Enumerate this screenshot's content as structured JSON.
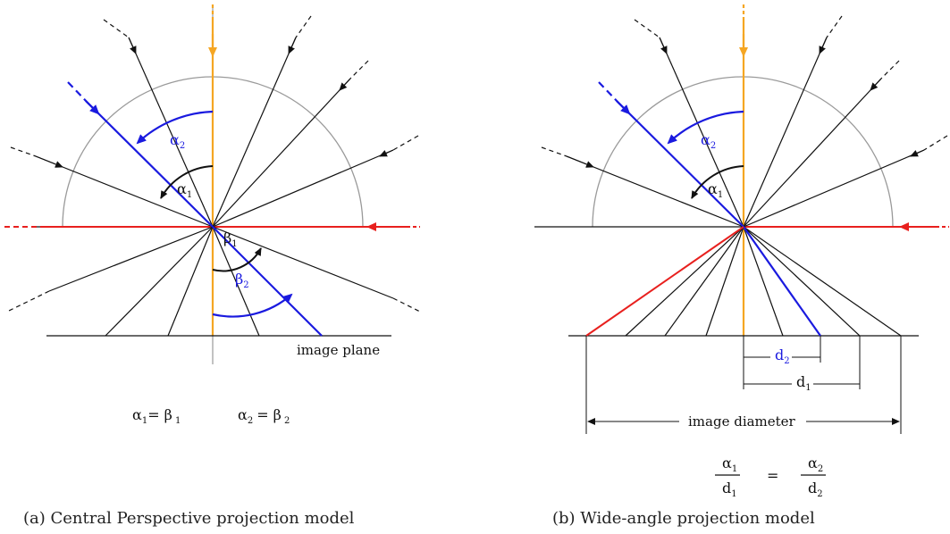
{
  "left_panel": {
    "caption": "(a) Central Perspective projection model",
    "image_plane_label": "image plane",
    "alpha1": {
      "sym": "α",
      "sub": "1"
    },
    "alpha2": {
      "sym": "α",
      "sub": "2"
    },
    "beta1": {
      "sym": "β",
      "sub": "1"
    },
    "beta2": {
      "sym": "β",
      "sub": "2"
    },
    "equation1": {
      "lhs": "α",
      "lhs_sub": "1",
      "eq": "= β",
      "rhs_sub": "1"
    },
    "equation2": {
      "lhs": "α",
      "lhs_sub": "2",
      "eq": "= β",
      "rhs_sub": "2"
    }
  },
  "right_panel": {
    "caption": "(b) Wide-angle projection model",
    "image_diameter_label": "image diameter",
    "alpha1": {
      "sym": "α",
      "sub": "1"
    },
    "alpha2": {
      "sym": "α",
      "sub": "2"
    },
    "d1": {
      "sym": "d",
      "sub": "1"
    },
    "d2": {
      "sym": "d",
      "sub": "2"
    },
    "ratio_equation": {
      "num_left": "α",
      "num_left_sub": "1",
      "den_left": "d",
      "den_left_sub": "1",
      "equals": "=",
      "num_right": "α",
      "num_right_sub": "2",
      "den_right": "d",
      "den_right_sub": "2"
    }
  },
  "colors": {
    "axis": "#f5a623",
    "incident_highlight": "#1a1adf",
    "horizon": "#e8201e",
    "lines": "#111111",
    "circle": "#9a9a9a"
  }
}
